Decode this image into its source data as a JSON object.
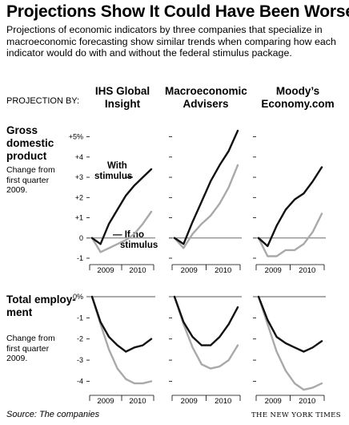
{
  "title": "Projections Show It Could Have Been Worse",
  "intro": "Projections of economic indicators by three companies that specialize in macroeconomic forecasting show similar trends when comparing how each indicator would do with and without the federal stimulus package.",
  "projection_by_label": "PROJECTION BY:",
  "companies": [
    "IHS Global Insight",
    "Macroeconomic Advisers",
    "Moody’s Economy.com"
  ],
  "gdp": {
    "title": "Gross domestic product",
    "subtitle": "Change from first quarter 2009."
  },
  "employment": {
    "title": "Total employ-ment",
    "subtitle": "Change from first quarter 2009."
  },
  "annotations": {
    "with_stimulus": "With stimulus",
    "without_stimulus": "If no stimulus"
  },
  "source": "Source: The companies",
  "credit": "THE NEW YORK TIMES",
  "colors": {
    "with_stimulus": "#111111",
    "without_stimulus": "#a9a9a9",
    "baseline": "#555555"
  },
  "chart_data": [
    {
      "type": "line",
      "panel": "gdp-ihs",
      "x": [
        "2009Q1",
        "2009Q2",
        "2009Q3",
        "2009Q4",
        "2010Q1",
        "2010Q2",
        "2010Q3",
        "2010Q4"
      ],
      "ylim": [
        -1,
        5.5
      ],
      "yticks": [
        -1,
        0,
        1,
        2,
        3,
        4,
        5
      ],
      "ytick_labels": [
        "-1",
        "0",
        "+1",
        "+2",
        "+3",
        "+4",
        "+5%"
      ],
      "xtick_labels": [
        "2009",
        "2010"
      ],
      "series": [
        {
          "name": "With stimulus",
          "values": [
            0,
            -0.3,
            0.7,
            1.4,
            2.1,
            2.6,
            3.0,
            3.4
          ]
        },
        {
          "name": "If no stimulus",
          "values": [
            0,
            -0.7,
            -0.5,
            -0.3,
            -0.1,
            0.2,
            0.7,
            1.3
          ]
        }
      ]
    },
    {
      "type": "line",
      "panel": "gdp-macro",
      "x": [
        "2009Q1",
        "2009Q2",
        "2009Q3",
        "2009Q4",
        "2010Q1",
        "2010Q2",
        "2010Q3",
        "2010Q4"
      ],
      "ylim": [
        -1,
        5.5
      ],
      "xtick_labels": [
        "2009",
        "2010"
      ],
      "series": [
        {
          "name": "With stimulus",
          "values": [
            0,
            -0.3,
            0.8,
            1.8,
            2.8,
            3.6,
            4.3,
            5.3
          ]
        },
        {
          "name": "If no stimulus",
          "values": [
            0,
            -0.5,
            0.2,
            0.7,
            1.1,
            1.7,
            2.5,
            3.6
          ]
        }
      ]
    },
    {
      "type": "line",
      "panel": "gdp-moodys",
      "x": [
        "2009Q1",
        "2009Q2",
        "2009Q3",
        "2009Q4",
        "2010Q1",
        "2010Q2",
        "2010Q3",
        "2010Q4"
      ],
      "ylim": [
        -1,
        5.5
      ],
      "xtick_labels": [
        "2009",
        "2010"
      ],
      "series": [
        {
          "name": "With stimulus",
          "values": [
            0,
            -0.4,
            0.6,
            1.4,
            1.9,
            2.2,
            2.8,
            3.5
          ]
        },
        {
          "name": "If no stimulus",
          "values": [
            0,
            -0.9,
            -0.9,
            -0.6,
            -0.6,
            -0.3,
            0.3,
            1.2
          ]
        }
      ]
    },
    {
      "type": "line",
      "panel": "emp-ihs",
      "x": [
        "2009Q1",
        "2009Q2",
        "2009Q3",
        "2009Q4",
        "2010Q1",
        "2010Q2",
        "2010Q3",
        "2010Q4"
      ],
      "ylim": [
        -4.4,
        0
      ],
      "yticks": [
        0,
        -1,
        -2,
        -3,
        -4
      ],
      "ytick_labels": [
        "0%",
        "-1",
        "-2",
        "-3",
        "-4"
      ],
      "xtick_labels": [
        "2009",
        "2010"
      ],
      "series": [
        {
          "name": "With stimulus",
          "values": [
            0,
            -1.2,
            -1.9,
            -2.3,
            -2.6,
            -2.4,
            -2.3,
            -2.0
          ]
        },
        {
          "name": "If no stimulus",
          "values": [
            0,
            -1.3,
            -2.5,
            -3.4,
            -3.9,
            -4.1,
            -4.1,
            -4.0
          ]
        }
      ]
    },
    {
      "type": "line",
      "panel": "emp-macro",
      "x": [
        "2009Q1",
        "2009Q2",
        "2009Q3",
        "2009Q4",
        "2010Q1",
        "2010Q2",
        "2010Q3",
        "2010Q4"
      ],
      "ylim": [
        -4.4,
        0
      ],
      "xtick_labels": [
        "2009",
        "2010"
      ],
      "series": [
        {
          "name": "With stimulus",
          "values": [
            0,
            -1.2,
            -1.9,
            -2.3,
            -2.3,
            -1.9,
            -1.3,
            -0.5
          ]
        },
        {
          "name": "If no stimulus",
          "values": [
            0,
            -1.3,
            -2.4,
            -3.2,
            -3.4,
            -3.3,
            -3.0,
            -2.3
          ]
        }
      ]
    },
    {
      "type": "line",
      "panel": "emp-moodys",
      "x": [
        "2009Q1",
        "2009Q2",
        "2009Q3",
        "2009Q4",
        "2010Q1",
        "2010Q2",
        "2010Q3",
        "2010Q4"
      ],
      "ylim": [
        -4.4,
        0
      ],
      "xtick_labels": [
        "2009",
        "2010"
      ],
      "series": [
        {
          "name": "With stimulus",
          "values": [
            0,
            -1.1,
            -1.9,
            -2.2,
            -2.4,
            -2.6,
            -2.4,
            -2.1
          ]
        },
        {
          "name": "If no stimulus",
          "values": [
            0,
            -1.3,
            -2.6,
            -3.5,
            -4.1,
            -4.4,
            -4.3,
            -4.1
          ]
        }
      ]
    }
  ]
}
